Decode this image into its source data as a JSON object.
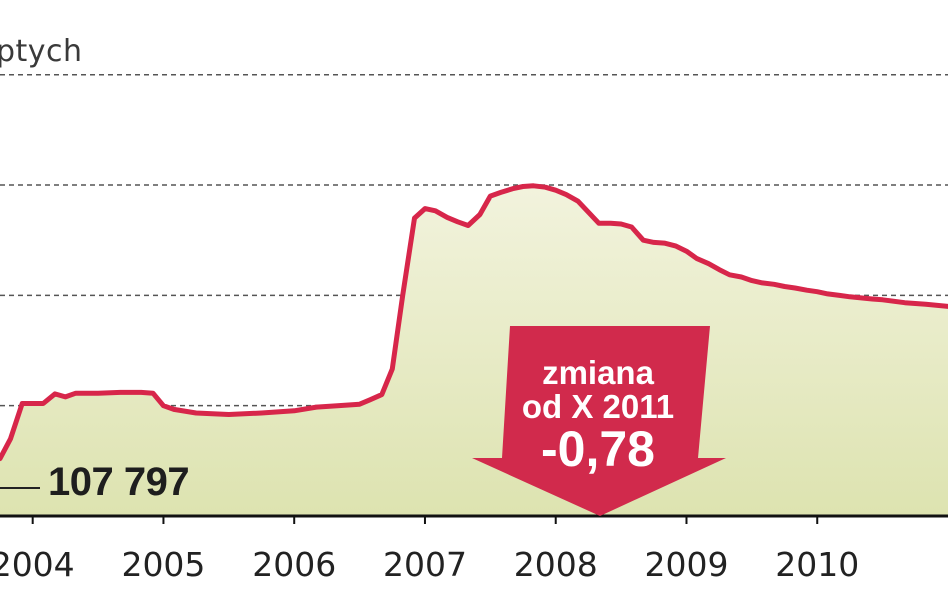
{
  "unit_label": "ptych",
  "start_value_label": "107 797",
  "callout": {
    "line1": "zmiana",
    "line2": "od X 2011",
    "line3": "-0,78",
    "color": "#d12a4c"
  },
  "colors": {
    "line": "#d7264a",
    "fill": "#e8ebc8",
    "fill_bottom": "#d9dfa8",
    "grid": "#555555",
    "axis": "#111111"
  },
  "chart_data": {
    "type": "area",
    "title": "",
    "xlabel": "",
    "ylabel": "ptych",
    "x_tick_labels": [
      "2004",
      "2005",
      "2006",
      "2007",
      "2008",
      "2009",
      "2010"
    ],
    "x_tick_years": [
      2004,
      2005,
      2006,
      2007,
      2008,
      2009,
      2010
    ],
    "xlim": [
      2003.75,
      2011.0
    ],
    "ylim": [
      100000,
      162000
    ],
    "gridlines_y": [
      115000,
      130000,
      145000,
      160000
    ],
    "grid": true,
    "annotation_start": {
      "x": 2003.75,
      "y": 107797,
      "label": "107 797"
    },
    "series": [
      {
        "name": "",
        "x": [
          2003.75,
          2003.83,
          2003.92,
          2004.0,
          2004.08,
          2004.17,
          2004.25,
          2004.33,
          2004.5,
          2004.67,
          2004.83,
          2004.92,
          2005.0,
          2005.08,
          2005.25,
          2005.5,
          2005.75,
          2006.0,
          2006.17,
          2006.33,
          2006.5,
          2006.58,
          2006.67,
          2006.75,
          2006.83,
          2006.92,
          2007.0,
          2007.08,
          2007.17,
          2007.25,
          2007.33,
          2007.42,
          2007.5,
          2007.58,
          2007.67,
          2007.75,
          2007.83,
          2007.92,
          2008.0,
          2008.08,
          2008.17,
          2008.25,
          2008.33,
          2008.42,
          2008.5,
          2008.58,
          2008.67,
          2008.75,
          2008.83,
          2008.92,
          2009.0,
          2009.08,
          2009.17,
          2009.25,
          2009.33,
          2009.42,
          2009.5,
          2009.58,
          2009.67,
          2009.75,
          2009.83,
          2009.92,
          2010.0,
          2010.08,
          2010.17,
          2010.25,
          2010.42,
          2010.5,
          2010.67,
          2010.83,
          2011.0
        ],
        "values": [
          107800,
          110500,
          115300,
          115300,
          115300,
          116600,
          116200,
          116700,
          116700,
          116800,
          116800,
          116700,
          115000,
          114500,
          114000,
          113800,
          114000,
          114300,
          114800,
          115000,
          115200,
          115800,
          116500,
          120000,
          130000,
          140500,
          141800,
          141500,
          140600,
          140000,
          139500,
          141000,
          143500,
          144000,
          144500,
          144800,
          144900,
          144700,
          144300,
          143700,
          142800,
          141300,
          139800,
          139800,
          139700,
          139300,
          137500,
          137200,
          137100,
          136700,
          136000,
          135000,
          134300,
          133500,
          132800,
          132500,
          132000,
          131700,
          131500,
          131200,
          131000,
          130700,
          130500,
          130200,
          130000,
          129800,
          129500,
          129400,
          129000,
          128800,
          128500
        ]
      }
    ]
  }
}
